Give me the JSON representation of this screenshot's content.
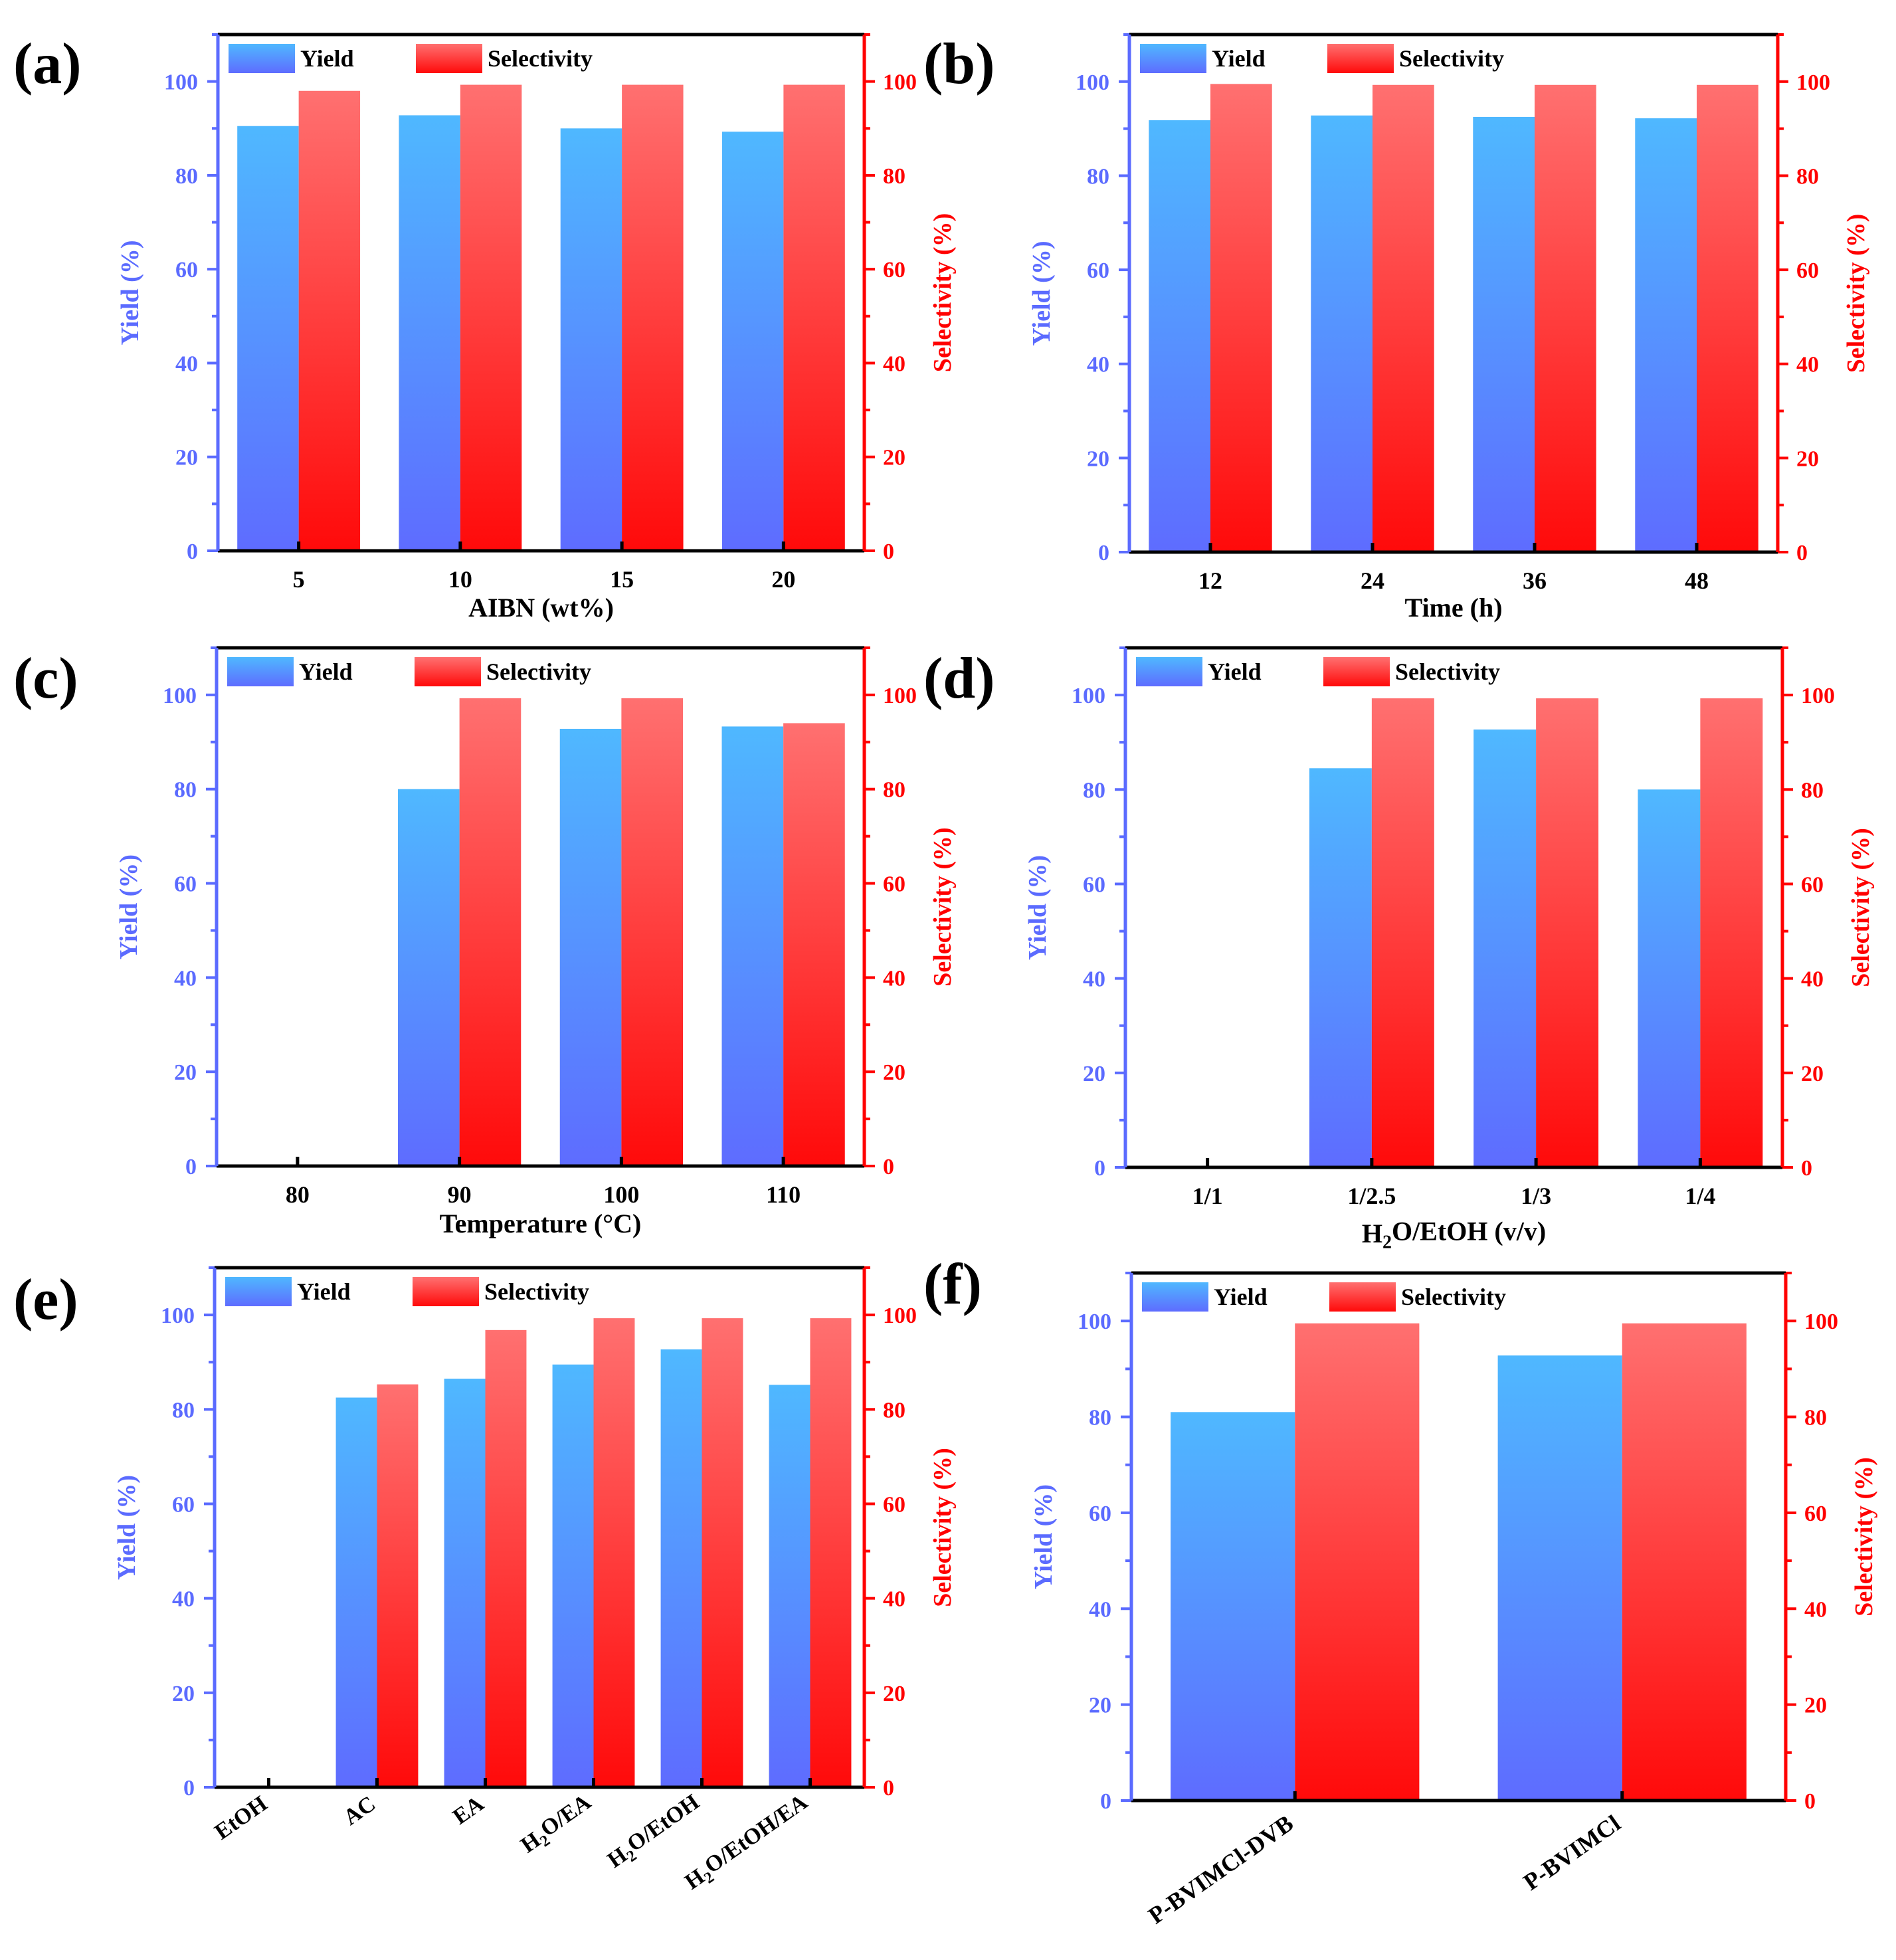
{
  "colors": {
    "yield_top": "#4FB8FF",
    "yield_bottom": "#5E6CFF",
    "sel_top": "#FF7070",
    "sel_bottom": "#FF0A0A",
    "left_axis": "#5B6BFF",
    "right_axis": "#FF0000",
    "frame": "#000000"
  },
  "chart_data": [
    {
      "panel_label": "(a)",
      "type": "bar",
      "categories": [
        "5",
        "10",
        "15",
        "20"
      ],
      "series": [
        {
          "name": "Yield",
          "axis": "left",
          "values": [
            90.5,
            92.8,
            90.0,
            89.3
          ]
        },
        {
          "name": "Selectivity",
          "axis": "right",
          "values": [
            98.0,
            99.3,
            99.3,
            99.3
          ]
        }
      ],
      "xlabel": "AIBN (wt%)",
      "ylabel": "Yield (%)",
      "y2label": "Selectivity (%)",
      "ylim": [
        0,
        110
      ],
      "y2lim": [
        0,
        110
      ],
      "yticks": [
        0,
        20,
        40,
        60,
        80,
        100
      ],
      "legend": [
        "Yield",
        "Selectivity"
      ]
    },
    {
      "panel_label": "(b)",
      "type": "bar",
      "categories": [
        "12",
        "24",
        "36",
        "48"
      ],
      "series": [
        {
          "name": "Yield",
          "axis": "left",
          "values": [
            91.8,
            92.8,
            92.5,
            92.2
          ]
        },
        {
          "name": "Selectivity",
          "axis": "right",
          "values": [
            99.5,
            99.3,
            99.3,
            99.3
          ]
        }
      ],
      "xlabel": "Time (h)",
      "ylabel": "Yield (%)",
      "y2label": "Selectivity (%)",
      "ylim": [
        0,
        110
      ],
      "y2lim": [
        0,
        110
      ],
      "yticks": [
        0,
        20,
        40,
        60,
        80,
        100
      ],
      "legend": [
        "Yield",
        "Selectivity"
      ]
    },
    {
      "panel_label": "(c)",
      "type": "bar",
      "categories": [
        "80",
        "90",
        "100",
        "110"
      ],
      "series": [
        {
          "name": "Yield",
          "axis": "left",
          "values": [
            0,
            80.0,
            92.8,
            93.3
          ]
        },
        {
          "name": "Selectivity",
          "axis": "right",
          "values": [
            0,
            99.3,
            99.3,
            94.0
          ]
        }
      ],
      "xlabel": "Temperature (°C)",
      "ylabel": "Yield (%)",
      "y2label": "Selectivity (%)",
      "ylim": [
        0,
        110
      ],
      "y2lim": [
        0,
        110
      ],
      "yticks": [
        0,
        20,
        40,
        60,
        80,
        100
      ],
      "legend": [
        "Yield",
        "Selectivity"
      ]
    },
    {
      "panel_label": "(d)",
      "type": "bar",
      "categories": [
        "1/1",
        "1/2.5",
        "1/3",
        "1/4"
      ],
      "series": [
        {
          "name": "Yield",
          "axis": "left",
          "values": [
            0,
            84.5,
            92.7,
            80.0
          ]
        },
        {
          "name": "Selectivity",
          "axis": "right",
          "values": [
            0,
            99.3,
            99.3,
            99.3
          ]
        }
      ],
      "xlabel": "H2O/EtOH (v/v)",
      "ylabel": "Yield (%)",
      "y2label": "Selectivity (%)",
      "ylim": [
        0,
        110
      ],
      "y2lim": [
        0,
        110
      ],
      "yticks": [
        0,
        20,
        40,
        60,
        80,
        100
      ],
      "legend": [
        "Yield",
        "Selectivity"
      ]
    },
    {
      "panel_label": "(e)",
      "type": "bar",
      "categories": [
        "EtOH",
        "AC",
        "EA",
        "H2O/EA",
        "H2O/EtOH",
        "H2O/EtOH/EA"
      ],
      "series": [
        {
          "name": "Yield",
          "axis": "left",
          "values": [
            0,
            82.5,
            86.5,
            89.5,
            92.7,
            85.2
          ]
        },
        {
          "name": "Selectivity",
          "axis": "right",
          "values": [
            0,
            85.3,
            96.8,
            99.3,
            99.3,
            99.3
          ]
        }
      ],
      "xlabel": "",
      "ylabel": "Yield (%)",
      "y2label": "Selectivity (%)",
      "ylim": [
        0,
        110
      ],
      "y2lim": [
        0,
        110
      ],
      "yticks": [
        0,
        20,
        40,
        60,
        80,
        100
      ],
      "legend": [
        "Yield",
        "Selectivity"
      ]
    },
    {
      "panel_label": "(f)",
      "type": "bar",
      "categories": [
        "P-BVIMCl-DVB",
        "P-BVIMCl"
      ],
      "series": [
        {
          "name": "Yield",
          "axis": "left",
          "values": [
            81.0,
            92.8
          ]
        },
        {
          "name": "Selectivity",
          "axis": "right",
          "values": [
            99.5,
            99.5
          ]
        }
      ],
      "xlabel": "",
      "ylabel": "Yield (%)",
      "y2label": "Selectivity (%)",
      "ylim": [
        0,
        110
      ],
      "y2lim": [
        0,
        110
      ],
      "yticks": [
        0,
        20,
        40,
        60,
        80,
        100
      ],
      "legend": [
        "Yield",
        "Selectivity"
      ]
    }
  ]
}
